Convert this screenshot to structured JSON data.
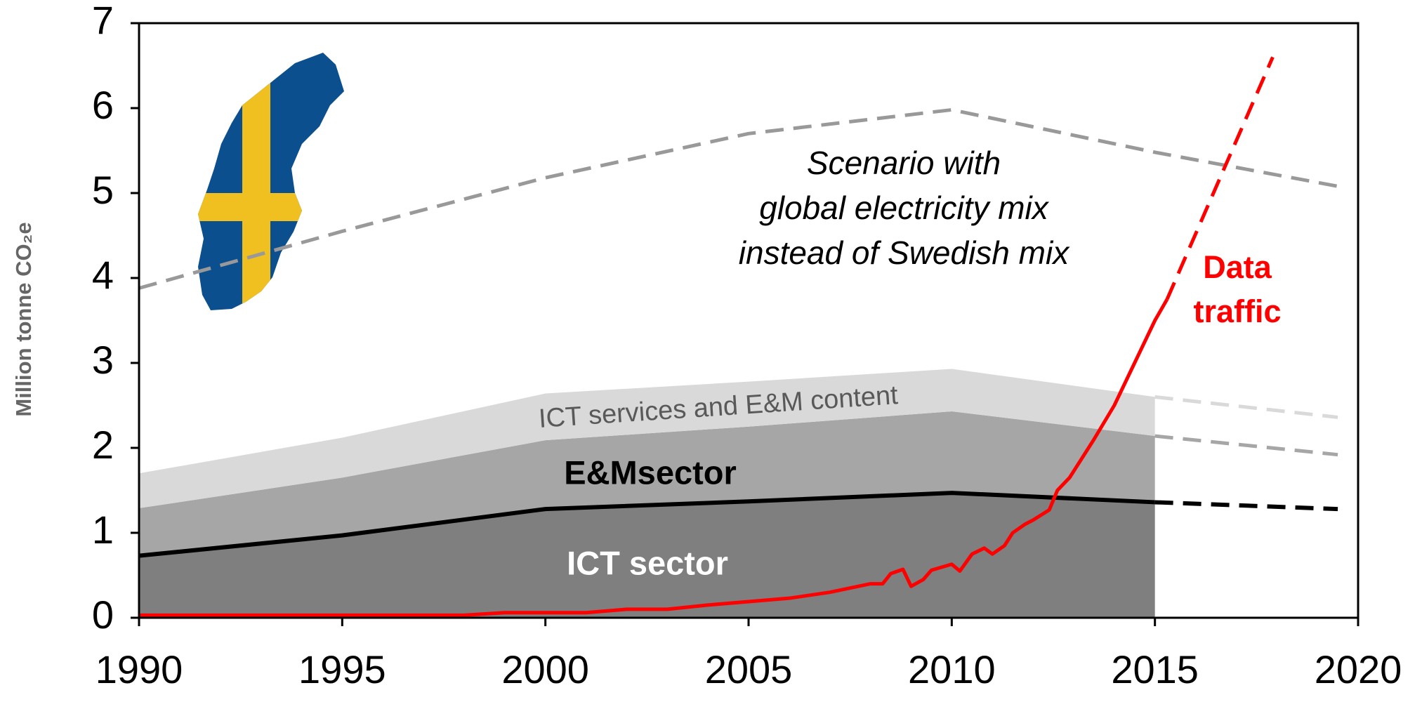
{
  "chart_data": {
    "type": "area",
    "ylabel": "Million tonne CO₂e",
    "xlim": [
      1990,
      2020
    ],
    "ylim": [
      0,
      7
    ],
    "xticks": [
      1990,
      1995,
      2000,
      2005,
      2010,
      2015,
      2020
    ],
    "yticks": [
      0,
      1,
      2,
      3,
      4,
      5,
      6,
      7
    ],
    "series": [
      {
        "name": "ICT sector",
        "color": "#7f7f7f",
        "line_color": "#000000",
        "x": [
          1990,
          1995,
          2000,
          2005,
          2010,
          2015
        ],
        "values": [
          0.73,
          0.97,
          1.28,
          1.37,
          1.47,
          1.36
        ],
        "projection_x": [
          2015,
          2019.5
        ],
        "projection_values": [
          1.36,
          1.28
        ]
      },
      {
        "name": "E&Msector",
        "color": "#a6a6a6",
        "line_color": "#a6a6a6",
        "x": [
          1990,
          1995,
          2000,
          2005,
          2010,
          2015
        ],
        "values": [
          0.56,
          0.68,
          0.81,
          0.88,
          0.96,
          0.78
        ],
        "projection_x": [
          2015,
          2019.5
        ],
        "projection_values": [
          0.78,
          0.64
        ]
      },
      {
        "name": "ICT services and E&M content",
        "color": "#d9d9d9",
        "line_color": "#d9d9d9",
        "x": [
          1990,
          1995,
          2000,
          2005,
          2010,
          2015
        ],
        "values": [
          0.41,
          0.47,
          0.55,
          0.53,
          0.5,
          0.46
        ],
        "projection_x": [
          2015,
          2019.5
        ],
        "projection_values": [
          0.46,
          0.44
        ]
      }
    ],
    "lines": [
      {
        "color": "#999999",
        "dashed": true,
        "x": [
          1990,
          1995,
          2000,
          2005,
          2010,
          2015,
          2019.5
        ],
        "values": [
          3.88,
          4.55,
          5.18,
          5.7,
          5.98,
          5.48,
          5.08
        ]
      },
      {
        "color": "#ff0000",
        "dashed": false,
        "x": [
          1990,
          1998,
          1999,
          2000,
          2001,
          2002,
          2003,
          2004,
          2005,
          2006,
          2007,
          2008,
          2008.3,
          2008.5,
          2008.8,
          2009,
          2009.3,
          2009.5,
          2010,
          2010.2,
          2010.5,
          2010.8,
          2011,
          2011.3,
          2011.5,
          2011.8,
          2012,
          2012.4,
          2012.6,
          2012.9,
          2013.5,
          2014,
          2014.5,
          2015,
          2015.3
        ],
        "values": [
          0.03,
          0.03,
          0.06,
          0.06,
          0.06,
          0.1,
          0.1,
          0.15,
          0.19,
          0.23,
          0.3,
          0.4,
          0.4,
          0.52,
          0.57,
          0.37,
          0.45,
          0.56,
          0.63,
          0.55,
          0.75,
          0.82,
          0.75,
          0.85,
          1.0,
          1.1,
          1.15,
          1.27,
          1.5,
          1.65,
          2.1,
          2.5,
          3.0,
          3.5,
          3.75
        ]
      },
      {
        "color": "#ff0000",
        "dashed": true,
        "x": [
          2015.3,
          2017.9
        ],
        "values": [
          3.75,
          6.6
        ]
      }
    ],
    "annotations": [
      "Scenario with",
      "global electricity mix",
      "instead of Swedish mix",
      "Data",
      "traffic"
    ]
  }
}
